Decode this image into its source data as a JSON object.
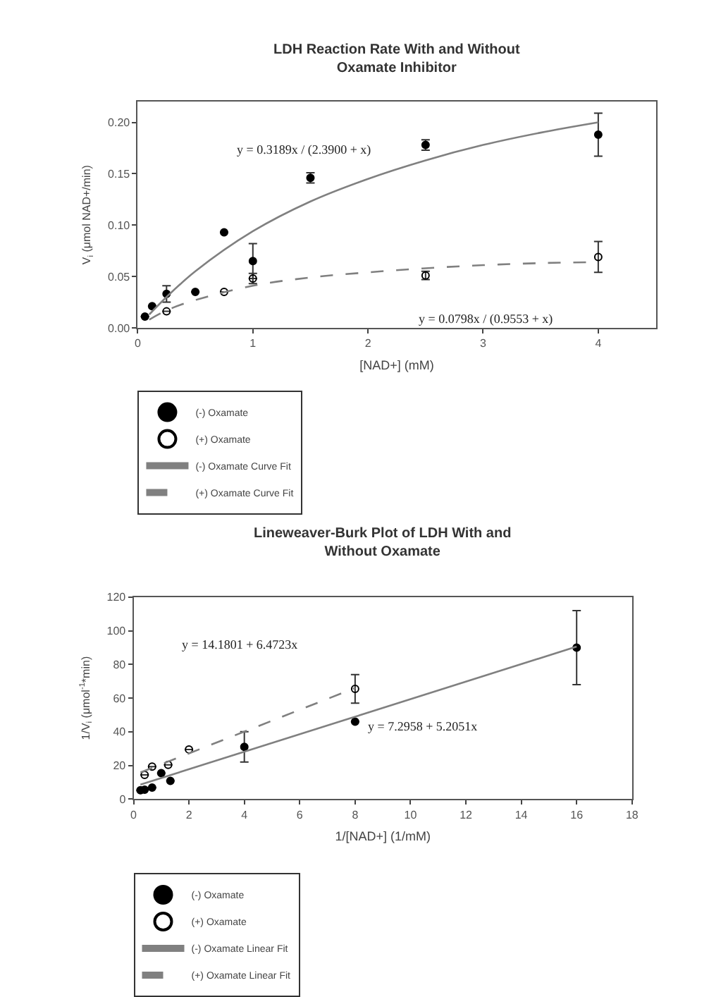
{
  "chart_data": [
    {
      "type": "scatter",
      "title": "LDH Reaction Rate With and Without\nOxamate Inhibitor",
      "xlabel": "[NAD+] (mM)",
      "ylabel": "V$_{i}$ (μmol NAD+/min)",
      "xlim": [
        0,
        4.5
      ],
      "ylim": [
        0,
        0.22
      ],
      "xticks": [
        0,
        1,
        2,
        3,
        4
      ],
      "yticks": [
        {
          "value": 0,
          "label": "0.00"
        },
        {
          "value": 0.05,
          "label": "0.05"
        },
        {
          "value": 0.1,
          "label": "0.10"
        },
        {
          "value": 0.15,
          "label": "0.15"
        },
        {
          "value": 0.2,
          "label": "0.20"
        }
      ],
      "legend": "bottom left",
      "series": [
        {
          "name": "(-) Oxamate",
          "marker": "circle",
          "color": "#000000",
          "x": [
            0.0625,
            0.125,
            0.25,
            0.5,
            0.75,
            1,
            1.5,
            2.5,
            4
          ],
          "values": [
            0.011,
            0.021,
            0.033,
            0.035,
            0.093,
            0.065,
            0.146,
            0.178,
            0.188
          ],
          "errors": [
            null,
            null,
            0.008,
            null,
            null,
            0.017,
            0.005,
            0.005,
            0.021
          ]
        },
        {
          "name": "(+) Oxamate",
          "marker": "circle",
          "color": "#000000",
          "x": [
            0.25,
            0.75,
            1,
            2.5,
            4
          ],
          "values": [
            0.016,
            0.035,
            0.048,
            0.051,
            0.069
          ],
          "errors": [
            null,
            null,
            0.005,
            0.004,
            0.015
          ]
        },
        {
          "name": "(-) Oxamate Curve Fit",
          "type": "line",
          "marker": "none",
          "line_style": "solid",
          "color": "#808080",
          "x": [
            0.1,
            0.25,
            0.5,
            1,
            1.5,
            2,
            2.5,
            3,
            3.5,
            4
          ],
          "values": [
            0.013,
            0.03,
            0.055,
            0.094,
            0.123,
            0.145,
            0.163,
            0.178,
            0.19,
            0.2
          ]
        },
        {
          "name": "(+) Oxamate Curve Fit",
          "type": "line",
          "marker": "none",
          "line_style": "dashed",
          "color": "#808080",
          "x": [
            0.1,
            0.25,
            0.5,
            1,
            1.5,
            2,
            2.5,
            3,
            3.5,
            4
          ],
          "values": [
            0.008,
            0.017,
            0.027,
            0.041,
            0.049,
            0.054,
            0.058,
            0.061,
            0.063,
            0.064
          ]
        }
      ],
      "annotations": [
        "y = 0.3189x / (2.3900 + x)",
        "y = 0.0798x / (0.9553 + x)"
      ]
    },
    {
      "type": "scatter",
      "title": "Lineweaver-Burk Plot of LDH With and\nWithout Oxamate",
      "xlabel": "1/[NAD+] (1/mM)",
      "ylabel": "1/V$_{i}$ (μmol$^{-1}$*min)",
      "xlim": [
        0,
        18
      ],
      "ylim": [
        0,
        120
      ],
      "xticks": [
        0,
        2,
        4,
        6,
        8,
        10,
        12,
        14,
        16,
        18
      ],
      "yticks": [
        0,
        20,
        40,
        60,
        80,
        100,
        120
      ],
      "legend": "bottom left",
      "series": [
        {
          "name": "(-) Oxamate",
          "marker": "circle",
          "color": "#000000",
          "x": [
            0.25,
            0.4,
            0.67,
            1,
            1.33,
            4,
            8,
            16
          ],
          "values": [
            5.3,
            5.6,
            6.8,
            15.4,
            10.8,
            31,
            46,
            90
          ],
          "errors": [
            null,
            null,
            null,
            null,
            null,
            9,
            null,
            22
          ]
        },
        {
          "name": "(+) Oxamate",
          "marker": "circle",
          "color": "#000000",
          "x": [
            0.4,
            0.67,
            1.25,
            2,
            8
          ],
          "values": [
            14.4,
            19.3,
            20.3,
            29.5,
            65.5
          ],
          "errors": [
            null,
            null,
            null,
            null,
            8.5
          ]
        },
        {
          "name": "(-) Oxamate Linear Fit",
          "type": "line",
          "marker": "none",
          "line_style": "solid",
          "color": "#808080",
          "x": [
            0.25,
            16
          ],
          "values": [
            8.6,
            90.6
          ]
        },
        {
          "name": "(+) Oxamate Linear Fit",
          "type": "line",
          "marker": "none",
          "line_style": "dashed",
          "color": "#808080",
          "x": [
            0.25,
            8
          ],
          "values": [
            15.8,
            66.0
          ]
        }
      ],
      "annotations": [
        "y = 14.1801 + 6.4723x",
        "y = 7.2958 + 5.2051x"
      ]
    }
  ]
}
